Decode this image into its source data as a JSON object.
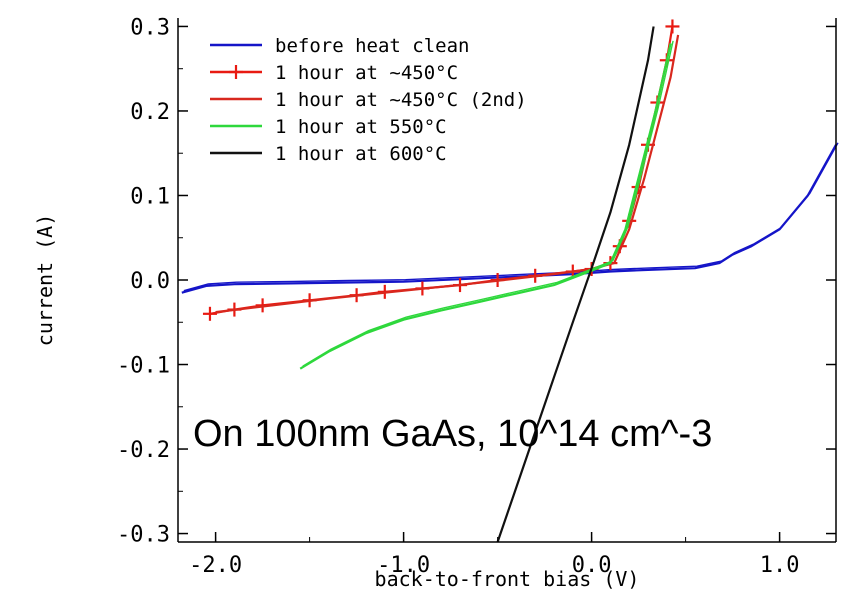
{
  "chart_data": {
    "type": "line",
    "xlabel": "back-to-front bias (V)",
    "ylabel": "current (A)",
    "xlim": [
      -2.2,
      1.3
    ],
    "ylim": [
      -0.31,
      0.31
    ],
    "x_ticks": [
      {
        "v": -2.0,
        "label": "-2.0"
      },
      {
        "v": -1.0,
        "label": "-1.0"
      },
      {
        "v": 0.0,
        "label": "0.0"
      },
      {
        "v": 1.0,
        "label": "1.0"
      }
    ],
    "y_ticks": [
      {
        "v": 0.3,
        "label": "0.3"
      },
      {
        "v": 0.2,
        "label": "0.2"
      },
      {
        "v": 0.1,
        "label": "0.1"
      },
      {
        "v": 0.0,
        "label": "0.0"
      },
      {
        "v": -0.1,
        "label": "-0.1"
      },
      {
        "v": -0.2,
        "label": "-0.2"
      },
      {
        "v": -0.3,
        "label": "-0.3"
      }
    ],
    "grid": false,
    "legend_position": "top-left",
    "annotation": "On 100nm GaAs, 10^14 cm^-3",
    "series": [
      {
        "name": "before heat clean",
        "color": "#1515c8",
        "marker": "none",
        "x": [
          -2.18,
          -2.05,
          -1.9,
          -1.6,
          -1.3,
          -1.0,
          -0.7,
          -0.4,
          -0.1,
          0.1,
          0.3,
          0.55,
          0.68,
          0.75,
          0.85,
          1.0,
          1.15,
          1.3
        ],
        "y": [
          -0.015,
          -0.007,
          -0.005,
          -0.004,
          -0.003,
          -0.002,
          0.001,
          0.004,
          0.007,
          0.01,
          0.012,
          0.014,
          0.02,
          0.03,
          0.04,
          0.06,
          0.1,
          0.16
        ]
      },
      {
        "name": "1 hour at ~450°C",
        "color": "#e81a12",
        "marker": "plus",
        "x": [
          -2.03,
          -1.9,
          -1.75,
          -1.5,
          -1.25,
          -1.1,
          -0.9,
          -0.7,
          -0.5,
          -0.3,
          -0.1,
          0.0,
          0.1,
          0.15,
          0.2,
          0.25,
          0.3,
          0.35,
          0.4,
          0.43
        ],
        "y": [
          -0.04,
          -0.035,
          -0.03,
          -0.024,
          -0.018,
          -0.014,
          -0.01,
          -0.006,
          0.0,
          0.005,
          0.01,
          0.013,
          0.02,
          0.04,
          0.07,
          0.11,
          0.16,
          0.21,
          0.26,
          0.3
        ]
      },
      {
        "name": "1 hour at ~450°C (2nd)",
        "color": "#d8281e",
        "marker": "none",
        "x": [
          -2.0,
          -1.7,
          -1.4,
          -1.1,
          -0.8,
          -0.5,
          -0.2,
          0.0,
          0.12,
          0.2,
          0.28,
          0.35,
          0.42,
          0.46
        ],
        "y": [
          -0.038,
          -0.03,
          -0.022,
          -0.015,
          -0.008,
          -0.001,
          0.007,
          0.013,
          0.02,
          0.06,
          0.12,
          0.18,
          0.24,
          0.29
        ]
      },
      {
        "name": "1 hour at 550°C",
        "color": "#2ed83c",
        "marker": "none",
        "x": [
          -1.55,
          -1.4,
          -1.2,
          -1.0,
          -0.8,
          -0.6,
          -0.4,
          -0.2,
          0.0,
          0.1,
          0.18,
          0.26,
          0.34,
          0.42
        ],
        "y": [
          -0.105,
          -0.085,
          -0.063,
          -0.047,
          -0.036,
          -0.026,
          -0.016,
          -0.006,
          0.011,
          0.02,
          0.06,
          0.13,
          0.2,
          0.28
        ]
      },
      {
        "name": "1 hour at 600°C",
        "color": "#111111",
        "marker": "none",
        "x": [
          -0.5,
          -0.4,
          -0.3,
          -0.2,
          -0.1,
          0.0,
          0.1,
          0.2,
          0.3,
          0.33
        ],
        "y": [
          -0.31,
          -0.245,
          -0.18,
          -0.115,
          -0.05,
          0.014,
          0.08,
          0.16,
          0.26,
          0.3
        ]
      }
    ]
  }
}
